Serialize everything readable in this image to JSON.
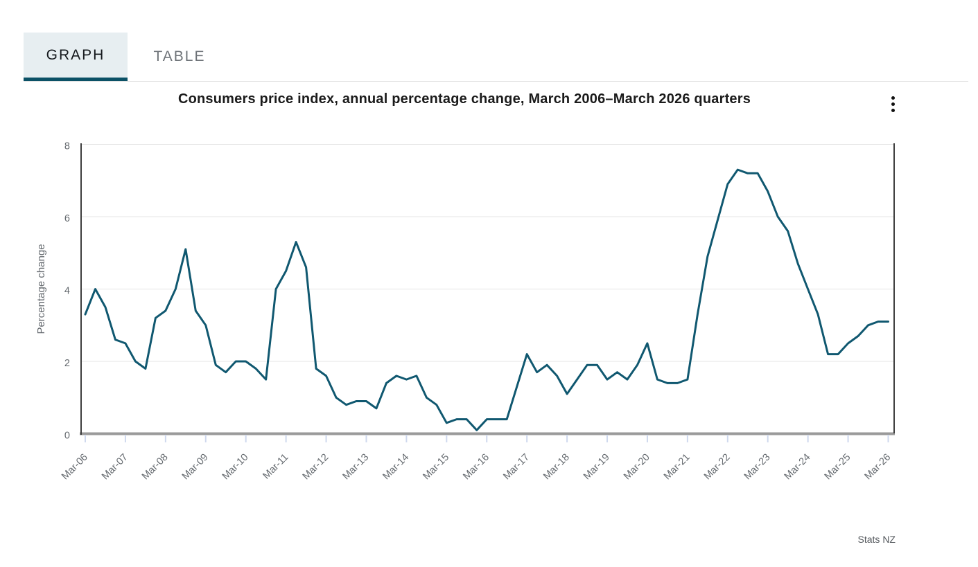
{
  "tab_bar": {
    "tabs": [
      {
        "label": "GRAPH",
        "active": true
      },
      {
        "label": "TABLE",
        "active": false
      }
    ]
  },
  "chart_header": {
    "title": "Consumers price index, annual percentage change, March 2006–March 2026 quarters",
    "menu_icon": "kebab-vertical"
  },
  "source": {
    "label": "Stats NZ"
  },
  "colors": {
    "line": "#105870",
    "tab_active_bg": "#e7eef1",
    "tab_underline": "#0b5166",
    "grid": "#e4e4e4",
    "axis_label": "#666b70",
    "axis_line_dark": "#3d3d3d",
    "axis_line_bottom": "#9a9a9a",
    "tick": "#cfd9ee"
  },
  "chart_data": {
    "type": "line",
    "title": "Consumers price index, annual percentage change, March 2006–March 2026 quarters",
    "xlabel": "",
    "ylabel": "Percentage change",
    "ylim": [
      0,
      8
    ],
    "yticks": [
      0,
      2,
      4,
      6,
      8
    ],
    "grid": true,
    "legend": false,
    "line_color": "#105870",
    "grid_color": "#e4e4e4",
    "axis_label_color": "#666b70",
    "x_tick_labels": [
      "Mar-06",
      "Mar-07",
      "Mar-08",
      "Mar-09",
      "Mar-10",
      "Mar-11",
      "Mar-12",
      "Mar-13",
      "Mar-14",
      "Mar-15",
      "Mar-16",
      "Mar-17",
      "Mar-18",
      "Mar-19",
      "Mar-20",
      "Mar-21",
      "Mar-22",
      "Mar-23",
      "Mar-24",
      "Mar-25",
      "Mar-26"
    ],
    "x": [
      "Mar-06",
      "Jun-06",
      "Sep-06",
      "Dec-06",
      "Mar-07",
      "Jun-07",
      "Sep-07",
      "Dec-07",
      "Mar-08",
      "Jun-08",
      "Sep-08",
      "Dec-08",
      "Mar-09",
      "Jun-09",
      "Sep-09",
      "Dec-09",
      "Mar-10",
      "Jun-10",
      "Sep-10",
      "Dec-10",
      "Mar-11",
      "Jun-11",
      "Sep-11",
      "Dec-11",
      "Mar-12",
      "Jun-12",
      "Sep-12",
      "Dec-12",
      "Mar-13",
      "Jun-13",
      "Sep-13",
      "Dec-13",
      "Mar-14",
      "Jun-14",
      "Sep-14",
      "Dec-14",
      "Mar-15",
      "Jun-15",
      "Sep-15",
      "Dec-15",
      "Mar-16",
      "Jun-16",
      "Sep-16",
      "Dec-16",
      "Mar-17",
      "Jun-17",
      "Sep-17",
      "Dec-17",
      "Mar-18",
      "Jun-18",
      "Sep-18",
      "Dec-18",
      "Mar-19",
      "Jun-19",
      "Sep-19",
      "Dec-19",
      "Mar-20",
      "Jun-20",
      "Sep-20",
      "Dec-20",
      "Mar-21",
      "Jun-21",
      "Sep-21",
      "Dec-21",
      "Mar-22",
      "Jun-22",
      "Sep-22",
      "Dec-22",
      "Mar-23",
      "Jun-23",
      "Sep-23",
      "Dec-23",
      "Mar-24",
      "Jun-24",
      "Sep-24",
      "Dec-24",
      "Mar-25",
      "Jun-25",
      "Sep-25",
      "Dec-25",
      "Mar-26"
    ],
    "values": [
      3.3,
      4.0,
      3.5,
      2.6,
      2.5,
      2.0,
      1.8,
      3.2,
      3.4,
      4.0,
      5.1,
      3.4,
      3.0,
      1.9,
      1.7,
      2.0,
      2.0,
      1.8,
      1.5,
      4.0,
      4.5,
      5.3,
      4.6,
      1.8,
      1.6,
      1.0,
      0.8,
      0.9,
      0.9,
      0.7,
      1.4,
      1.6,
      1.5,
      1.6,
      1.0,
      0.8,
      0.3,
      0.4,
      0.4,
      0.1,
      0.4,
      0.4,
      0.4,
      1.3,
      2.2,
      1.7,
      1.9,
      1.6,
      1.1,
      1.5,
      1.9,
      1.9,
      1.5,
      1.7,
      1.5,
      1.9,
      2.5,
      1.5,
      1.4,
      1.4,
      1.5,
      3.3,
      4.9,
      5.9,
      6.9,
      7.3,
      7.2,
      7.2,
      6.7,
      6.0,
      5.6,
      4.7,
      4.0,
      3.3,
      2.2,
      2.2,
      2.5,
      2.7,
      3.0,
      3.1,
      3.1
    ]
  }
}
